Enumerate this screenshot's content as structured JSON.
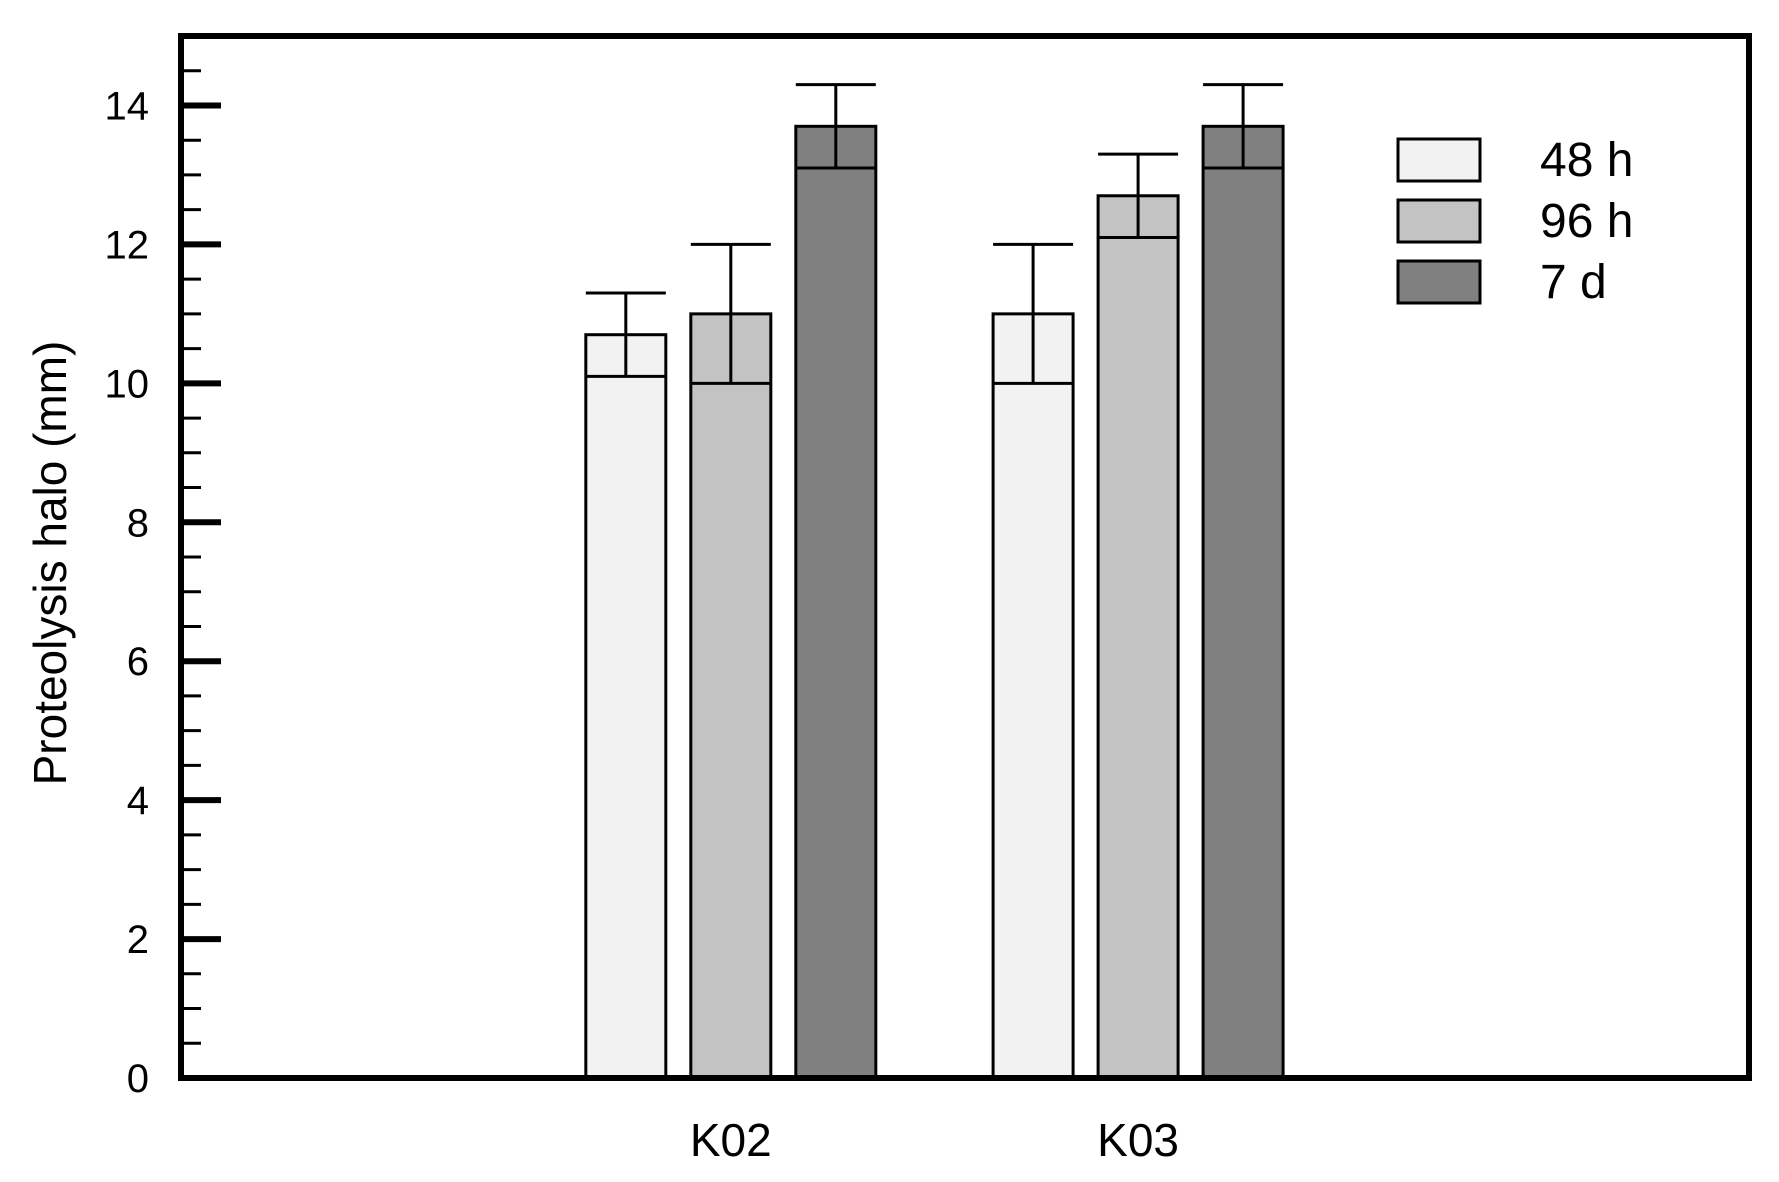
{
  "chart_data": {
    "type": "bar",
    "title": "",
    "xlabel": "",
    "ylabel": "Proteolysis halo (mm)",
    "ylim": [
      0,
      15
    ],
    "yticks": [
      0,
      2,
      4,
      6,
      8,
      10,
      12,
      14
    ],
    "ytick_labels": [
      "0",
      "2",
      "4",
      "6",
      "8",
      "10",
      "12",
      "14"
    ],
    "y_minor_step": 0.5,
    "categories": [
      "K02",
      "K03"
    ],
    "category_positions": [
      2,
      3
    ],
    "xlim": [
      0.65,
      4.5
    ],
    "grid": false,
    "legend_position": "top-right",
    "series": [
      {
        "name": "48 h",
        "color": "#f2f2f2",
        "values": [
          10.7,
          11.0
        ],
        "errors": [
          0.6,
          1.0
        ]
      },
      {
        "name": "96 h",
        "color": "#c3c3c3",
        "values": [
          11.0,
          12.7
        ],
        "errors": [
          1.0,
          0.6
        ]
      },
      {
        "name": "7 d",
        "color": "#808080",
        "values": [
          13.7,
          13.7
        ],
        "errors": [
          0.6,
          0.6
        ]
      }
    ]
  }
}
